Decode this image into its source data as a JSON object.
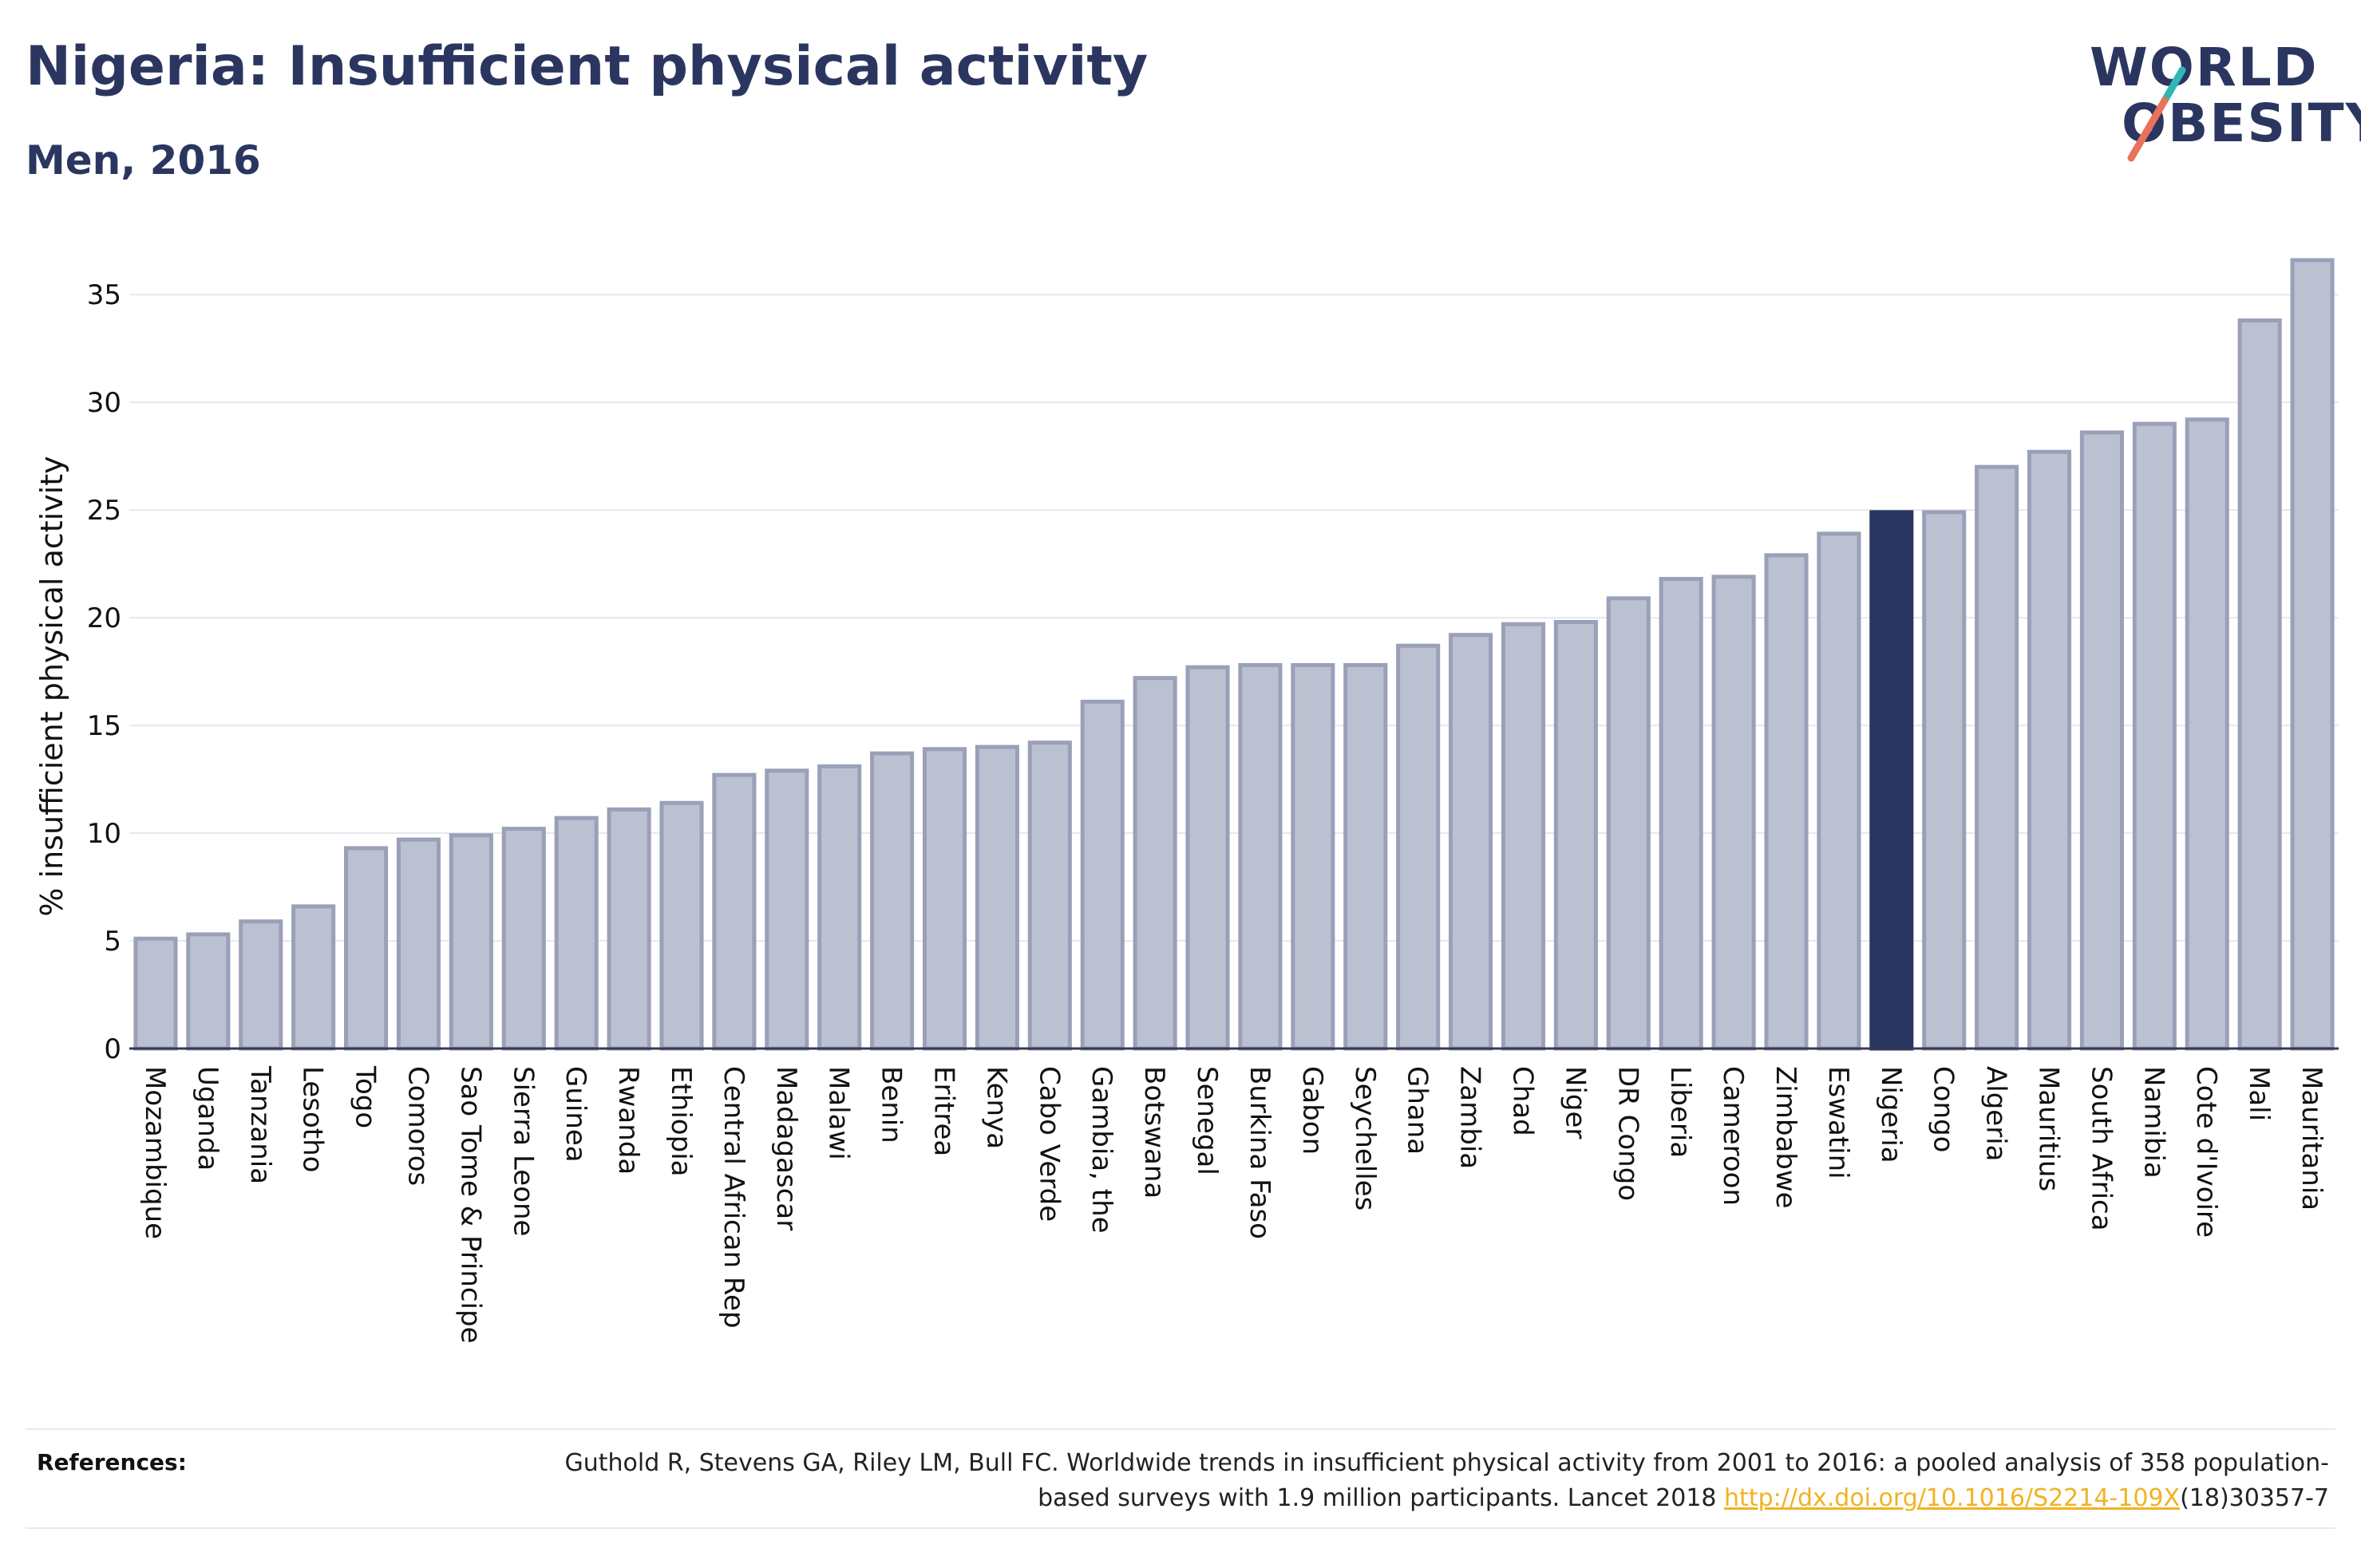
{
  "header": {
    "title": "Nigeria: Insufficient physical activity",
    "subtitle": "Men, 2016"
  },
  "logo": {
    "line1": "WORLD",
    "line2": "OBESITY",
    "accent_colors": [
      "#2fb7b3",
      "#e8735a"
    ]
  },
  "colors": {
    "bar_default": "#bcc1d1",
    "bar_stroke": "#9aa0b8",
    "bar_highlight": "#2b3660",
    "grid": "#e6e8ee",
    "text": "#111111",
    "link": "#f0b323"
  },
  "chart_data": {
    "type": "bar",
    "ylabel": "% insufficient physical activity",
    "xlabel": "",
    "ylim": [
      0,
      36.6
    ],
    "yticks": [
      0,
      5,
      10,
      15,
      20,
      25,
      30,
      35
    ],
    "grid": true,
    "highlight": "Nigeria",
    "categories": [
      "Mozambique",
      "Uganda",
      "Tanzania",
      "Lesotho",
      "Togo",
      "Comoros",
      "Sao Tome & Principe",
      "Sierra Leone",
      "Guinea",
      "Rwanda",
      "Ethiopia",
      "Central African Rep",
      "Madagascar",
      "Malawi",
      "Benin",
      "Eritrea",
      "Kenya",
      "Cabo Verde",
      "Gambia, the",
      "Botswana",
      "Senegal",
      "Burkina Faso",
      "Gabon",
      "Seychelles",
      "Ghana",
      "Zambia",
      "Chad",
      "Niger",
      "DR Congo",
      "Liberia",
      "Cameroon",
      "Zimbabwe",
      "Eswatini",
      "Nigeria",
      "Congo",
      "Algeria",
      "Mauritius",
      "South Africa",
      "Namibia",
      "Cote d'Ivoire",
      "Mali",
      "Mauritania"
    ],
    "values": [
      5.1,
      5.3,
      5.9,
      6.6,
      9.3,
      9.7,
      9.9,
      10.2,
      10.7,
      11.1,
      11.4,
      12.7,
      12.9,
      13.1,
      13.7,
      13.9,
      14.0,
      14.2,
      16.1,
      17.2,
      17.7,
      17.8,
      17.8,
      17.8,
      18.7,
      19.2,
      19.7,
      19.8,
      20.9,
      21.8,
      21.9,
      22.9,
      23.9,
      24.9,
      24.9,
      27.0,
      27.7,
      28.6,
      29.0,
      29.2,
      33.8,
      36.6
    ]
  },
  "references": {
    "label": "References:",
    "text_before": "Guthold R, Stevens GA, Riley LM, Bull FC. Worldwide trends in insufficient physical activity from 2001 to 2016: a pooled analysis of 358 population-based surveys with 1.9 million participants. Lancet 2018 ",
    "link_text": "http://dx.doi.org/10.1016/S2214-109X",
    "text_after": "(18)30357-7"
  }
}
